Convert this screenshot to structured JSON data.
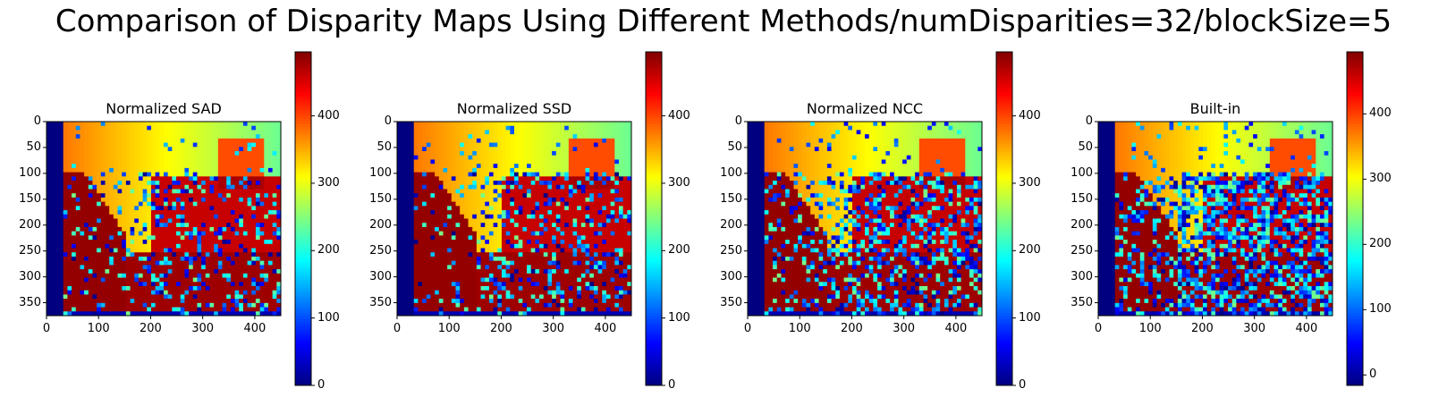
{
  "title": "Comparison of Disparity Maps Using Different Methods/numDisparities=32/blockSize=5",
  "colormap": "jet",
  "chart_data": [
    {
      "type": "heatmap",
      "title": "Normalized SAD",
      "x_ticks": [
        0,
        100,
        200,
        300,
        400
      ],
      "y_ticks": [
        0,
        50,
        100,
        150,
        200,
        250,
        300,
        350
      ],
      "xlim": [
        0,
        450
      ],
      "ylim": [
        375,
        0
      ],
      "colorbar": {
        "ticks": [
          0,
          100,
          200,
          300,
          400
        ],
        "range": [
          0,
          495
        ]
      },
      "noise": 0.25
    },
    {
      "type": "heatmap",
      "title": "Normalized SSD",
      "x_ticks": [
        0,
        100,
        200,
        300,
        400
      ],
      "y_ticks": [
        0,
        50,
        100,
        150,
        200,
        250,
        300,
        350
      ],
      "xlim": [
        0,
        450
      ],
      "ylim": [
        375,
        0
      ],
      "colorbar": {
        "ticks": [
          0,
          100,
          200,
          300,
          400
        ],
        "range": [
          0,
          495
        ]
      },
      "noise": 0.25
    },
    {
      "type": "heatmap",
      "title": "Normalized NCC",
      "x_ticks": [
        0,
        100,
        200,
        300,
        400
      ],
      "y_ticks": [
        0,
        50,
        100,
        150,
        200,
        250,
        300,
        350
      ],
      "xlim": [
        0,
        450
      ],
      "ylim": [
        375,
        0
      ],
      "colorbar": {
        "ticks": [
          0,
          100,
          200,
          300,
          400
        ],
        "range": [
          0,
          495
        ]
      },
      "noise": 0.4
    },
    {
      "type": "heatmap",
      "title": "Built-in",
      "x_ticks": [
        0,
        100,
        200,
        300,
        400
      ],
      "y_ticks": [
        0,
        50,
        100,
        150,
        200,
        250,
        300,
        350
      ],
      "xlim": [
        0,
        450
      ],
      "ylim": [
        375,
        0
      ],
      "colorbar": {
        "ticks": [
          0,
          100,
          200,
          300,
          400
        ],
        "range": [
          -16,
          495
        ]
      },
      "noise": 0.6
    }
  ]
}
